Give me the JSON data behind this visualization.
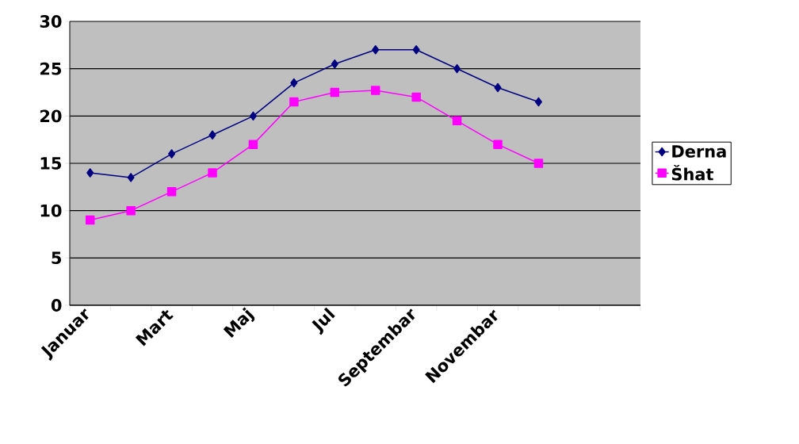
{
  "chart_data": {
    "type": "line",
    "categories": [
      "Januar",
      null,
      "Mart",
      null,
      "Maj",
      null,
      "Jul",
      null,
      "Septembar",
      null,
      "Novembar",
      null,
      null,
      null
    ],
    "series": [
      {
        "name": "Derna",
        "color": "#000080",
        "marker": "diamond",
        "values": [
          14,
          13.5,
          16,
          18,
          20,
          23.5,
          25.5,
          27,
          27,
          25,
          23,
          21.5,
          null,
          null
        ]
      },
      {
        "name": "Šhat",
        "color": "#ff00ff",
        "marker": "square",
        "values": [
          9,
          10,
          12,
          14,
          17,
          21.5,
          22.5,
          22.7,
          22,
          19.5,
          17,
          15,
          null,
          null
        ]
      }
    ],
    "ylim": [
      0,
      30
    ],
    "yticks": [
      0,
      5,
      10,
      15,
      20,
      25,
      30
    ],
    "grid": "y",
    "legend": "right",
    "line_style": "solid"
  }
}
